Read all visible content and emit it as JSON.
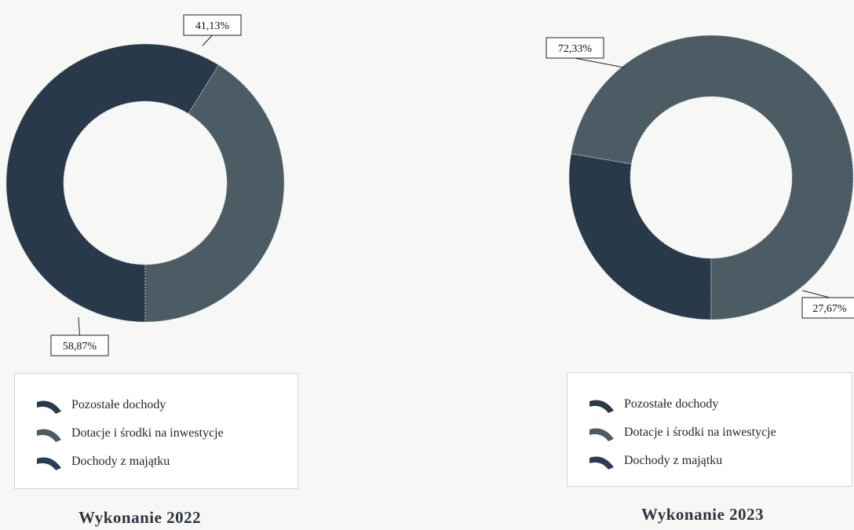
{
  "chart_data": [
    {
      "type": "pie",
      "title": "Wykonanie 2022",
      "categories": [
        "Pozostałe dochody",
        "Dotacje i środki na inwestycje",
        "Dochody z majątku"
      ],
      "series": [
        {
          "values": [
            58.87,
            41.13,
            0
          ]
        }
      ],
      "data_labels": [
        "58,87%",
        "41,13%"
      ],
      "legend": "bottom",
      "colors": [
        "#28394a",
        "#4c5c64",
        "#2a3d57"
      ]
    },
    {
      "type": "pie",
      "title": "Wykonanie 2023",
      "categories": [
        "Pozostałe dochody",
        "Dotacje i środki na inwestycje",
        "Dochody z majątku"
      ],
      "series": [
        {
          "values": [
            27.67,
            72.33,
            0
          ]
        }
      ],
      "data_labels": [
        "27,67%",
        "72,33%"
      ],
      "legend": "bottom",
      "colors": [
        "#28394a",
        "#4c5c64",
        "#2a3d57"
      ]
    }
  ]
}
